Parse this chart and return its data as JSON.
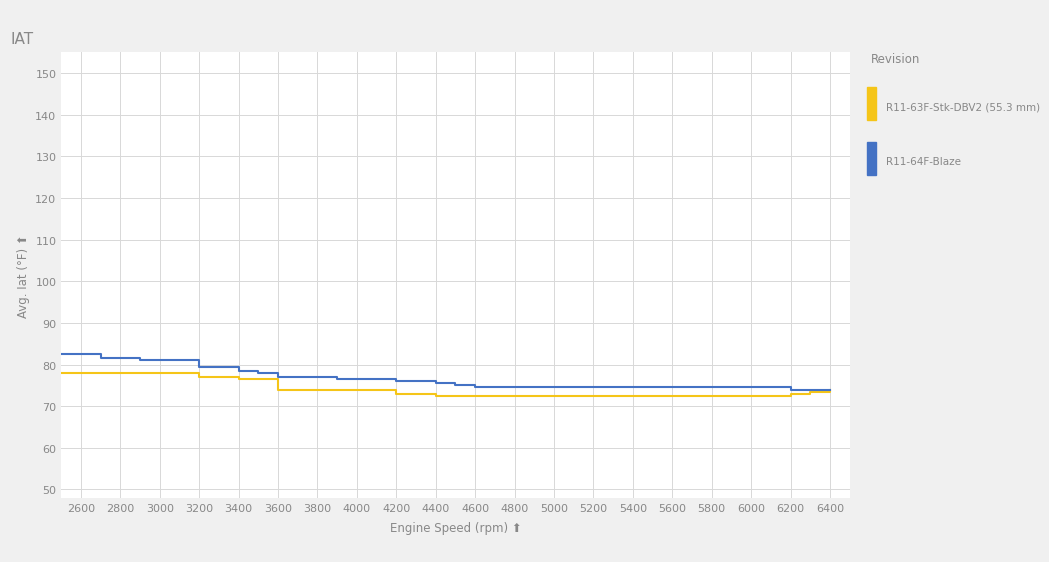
{
  "title": "IAT",
  "xlabel": "Engine Speed (rpm) ⬆",
  "ylabel": "Avg. Iat (°F) ⬆",
  "xlim": [
    2500,
    6500
  ],
  "ylim": [
    48,
    155
  ],
  "yticks": [
    50,
    60,
    70,
    80,
    90,
    100,
    110,
    120,
    130,
    140,
    150
  ],
  "xticks": [
    2600,
    2800,
    3000,
    3200,
    3400,
    3600,
    3800,
    4000,
    4200,
    4400,
    4600,
    4800,
    5000,
    5200,
    5400,
    5600,
    5800,
    6000,
    6200,
    6400
  ],
  "background_color": "#f0f0f0",
  "plot_bg_color": "#ffffff",
  "grid_color": "#d8d8d8",
  "legend_title": "Revision",
  "legend_bg": "#f0f0f0",
  "series": [
    {
      "label": "R11-63F-Stk-DBV2 (55.3 mm)",
      "color": "#f5c518",
      "x": [
        2500,
        2600,
        2700,
        2800,
        2900,
        3000,
        3100,
        3200,
        3300,
        3400,
        3500,
        3600,
        3700,
        3800,
        3900,
        4000,
        4100,
        4200,
        4300,
        4400,
        4500,
        4600,
        4700,
        4800,
        4900,
        5000,
        5100,
        5200,
        5300,
        5400,
        5500,
        5600,
        5700,
        5800,
        5900,
        6000,
        6100,
        6200,
        6300,
        6400
      ],
      "y": [
        78.0,
        78.0,
        78.0,
        78.0,
        78.0,
        78.0,
        78.0,
        77.0,
        77.0,
        76.5,
        76.5,
        74.0,
        74.0,
        74.0,
        74.0,
        74.0,
        74.0,
        73.0,
        73.0,
        72.5,
        72.5,
        72.5,
        72.5,
        72.5,
        72.5,
        72.5,
        72.5,
        72.5,
        72.5,
        72.5,
        72.5,
        72.5,
        72.5,
        72.5,
        72.5,
        72.5,
        72.5,
        73.0,
        73.5,
        74.0
      ]
    },
    {
      "label": "R11-64F-Blaze",
      "color": "#4472c4",
      "x": [
        2500,
        2600,
        2700,
        2800,
        2900,
        3000,
        3100,
        3200,
        3300,
        3400,
        3500,
        3600,
        3700,
        3800,
        3900,
        4000,
        4100,
        4200,
        4300,
        4400,
        4500,
        4600,
        4700,
        4800,
        4900,
        5000,
        5100,
        5200,
        5300,
        5400,
        5500,
        5600,
        5700,
        5800,
        5900,
        6000,
        6100,
        6200,
        6300,
        6400
      ],
      "y": [
        82.5,
        82.5,
        81.5,
        81.5,
        81.0,
        81.0,
        81.0,
        79.5,
        79.5,
        78.5,
        78.0,
        77.0,
        77.0,
        77.0,
        76.5,
        76.5,
        76.5,
        76.0,
        76.0,
        75.5,
        75.0,
        74.5,
        74.5,
        74.5,
        74.5,
        74.5,
        74.5,
        74.5,
        74.5,
        74.5,
        74.5,
        74.5,
        74.5,
        74.5,
        74.5,
        74.5,
        74.5,
        74.0,
        74.0,
        74.0
      ]
    }
  ]
}
